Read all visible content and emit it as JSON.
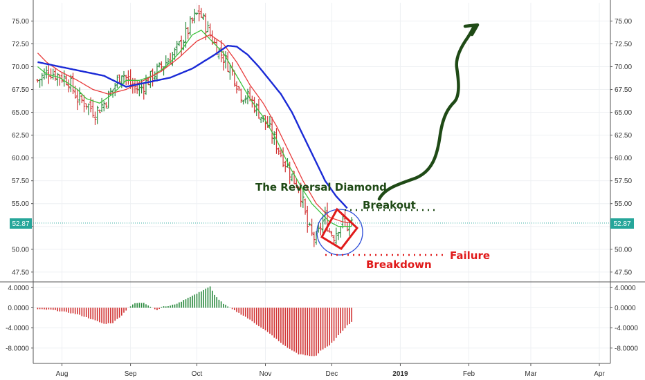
{
  "colors": {
    "grid": "#eef0f3",
    "axis": "#555555",
    "up": "#2a8a3e",
    "down": "#d03030",
    "ma_blue": "#1a2ad6",
    "ma_red": "#e83a3a",
    "ma_green": "#3cc23c",
    "price_line": "#26a69a",
    "annotation_green": "#1f4a16",
    "annotation_red": "#e01a1a",
    "circle": "#2b4bd8"
  },
  "current_price_label": "52.87",
  "chart_data": [
    {
      "type": "candlestick",
      "ylim": [
        46.5,
        77.0
      ],
      "y_ticks": [
        "47.50",
        "50.00",
        "52.50",
        "55.00",
        "57.50",
        "60.00",
        "62.50",
        "65.00",
        "67.50",
        "70.00",
        "72.50",
        "75.00"
      ],
      "x_ticks": [
        {
          "label": "Aug",
          "day": 11,
          "bold": false
        },
        {
          "label": "Sep",
          "day": 42,
          "bold": false
        },
        {
          "label": "Oct",
          "day": 72,
          "bold": false
        },
        {
          "label": "Nov",
          "day": 103,
          "bold": false
        },
        {
          "label": "Dec",
          "day": 133,
          "bold": false
        },
        {
          "label": "2019",
          "day": 164,
          "bold": true
        },
        {
          "label": "Feb",
          "day": 195,
          "bold": false
        },
        {
          "label": "Mar",
          "day": 223,
          "bold": false
        },
        {
          "label": "Apr",
          "day": 254,
          "bold": false
        }
      ],
      "x_range": [
        -2,
        259
      ],
      "current_price": 52.87,
      "close_anchors": [
        [
          0,
          68.5
        ],
        [
          5,
          69.5
        ],
        [
          10,
          69.0
        ],
        [
          14,
          68.5
        ],
        [
          18,
          66.5
        ],
        [
          22,
          66.0
        ],
        [
          26,
          65.0
        ],
        [
          30,
          66.0
        ],
        [
          34,
          67.5
        ],
        [
          38,
          69.5
        ],
        [
          42,
          68.0
        ],
        [
          46,
          67.5
        ],
        [
          50,
          68.5
        ],
        [
          54,
          69.5
        ],
        [
          58,
          70.5
        ],
        [
          62,
          71.5
        ],
        [
          66,
          73.0
        ],
        [
          70,
          75.0
        ],
        [
          73,
          76.0
        ],
        [
          76,
          74.5
        ],
        [
          80,
          72.5
        ],
        [
          84,
          71.0
        ],
        [
          88,
          69.5
        ],
        [
          92,
          67.0
        ],
        [
          96,
          66.5
        ],
        [
          100,
          65.0
        ],
        [
          104,
          63.5
        ],
        [
          108,
          61.5
        ],
        [
          112,
          59.5
        ],
        [
          116,
          57.5
        ],
        [
          118,
          57.0
        ],
        [
          120,
          55.0
        ],
        [
          122,
          52.5
        ],
        [
          124,
          51.5
        ],
        [
          126,
          51.0
        ],
        [
          128,
          52.5
        ],
        [
          130,
          53.5
        ],
        [
          132,
          52.0
        ],
        [
          134,
          51.5
        ],
        [
          136,
          52.5
        ],
        [
          138,
          53.0
        ],
        [
          140,
          52.5
        ],
        [
          142,
          52.87
        ]
      ],
      "ma_blue": [
        [
          0,
          70.5
        ],
        [
          10,
          70.0
        ],
        [
          20,
          69.5
        ],
        [
          30,
          69.0
        ],
        [
          40,
          67.8
        ],
        [
          50,
          68.3
        ],
        [
          60,
          68.8
        ],
        [
          70,
          69.8
        ],
        [
          80,
          71.3
        ],
        [
          86,
          72.3
        ],
        [
          90,
          72.2
        ],
        [
          95,
          71.3
        ],
        [
          100,
          70.0
        ],
        [
          105,
          68.5
        ],
        [
          110,
          67.0
        ],
        [
          115,
          65.0
        ],
        [
          120,
          62.5
        ],
        [
          125,
          60.0
        ],
        [
          130,
          57.5
        ],
        [
          135,
          55.8
        ],
        [
          140,
          54.5
        ]
      ],
      "ma_red": [
        [
          0,
          71.5
        ],
        [
          4,
          70.5
        ],
        [
          10,
          69.5
        ],
        [
          18,
          68.5
        ],
        [
          25,
          67.5
        ],
        [
          32,
          67.0
        ],
        [
          40,
          67.5
        ],
        [
          48,
          68.5
        ],
        [
          56,
          69.5
        ],
        [
          64,
          71.0
        ],
        [
          72,
          72.8
        ],
        [
          78,
          73.5
        ],
        [
          84,
          72.5
        ],
        [
          90,
          70.5
        ],
        [
          96,
          68.0
        ],
        [
          102,
          66.0
        ],
        [
          108,
          63.5
        ],
        [
          114,
          60.5
        ],
        [
          120,
          57.5
        ],
        [
          126,
          55.0
        ],
        [
          132,
          53.5
        ],
        [
          138,
          53.0
        ],
        [
          142,
          52.9
        ]
      ],
      "ma_green": [
        [
          0,
          70.0
        ],
        [
          4,
          69.2
        ],
        [
          10,
          68.8
        ],
        [
          18,
          67.5
        ],
        [
          22,
          66.5
        ],
        [
          28,
          66.0
        ],
        [
          34,
          67.0
        ],
        [
          40,
          68.5
        ],
        [
          46,
          68.5
        ],
        [
          52,
          69.0
        ],
        [
          58,
          70.0
        ],
        [
          64,
          71.5
        ],
        [
          70,
          73.5
        ],
        [
          74,
          74.0
        ],
        [
          78,
          73.0
        ],
        [
          84,
          71.5
        ],
        [
          90,
          69.0
        ],
        [
          96,
          66.5
        ],
        [
          102,
          64.5
        ],
        [
          108,
          62.0
        ],
        [
          114,
          59.0
        ],
        [
          120,
          56.5
        ],
        [
          124,
          55.0
        ],
        [
          128,
          54.0
        ],
        [
          132,
          53.0
        ],
        [
          136,
          52.5
        ],
        [
          140,
          52.5
        ],
        [
          142,
          52.5
        ]
      ]
    },
    {
      "type": "histogram",
      "ylim": [
        -10.5,
        5.0
      ],
      "y_ticks": [
        "4.0000",
        "0.0000",
        "-4.0000",
        "-8.0000"
      ],
      "hist_anchors": [
        [
          0,
          -0.3
        ],
        [
          6,
          -0.4
        ],
        [
          12,
          -0.8
        ],
        [
          18,
          -1.3
        ],
        [
          24,
          -2.2
        ],
        [
          30,
          -3.2
        ],
        [
          34,
          -3.0
        ],
        [
          38,
          -1.5
        ],
        [
          41,
          0.0
        ],
        [
          44,
          0.9
        ],
        [
          48,
          1.0
        ],
        [
          52,
          0.0
        ],
        [
          54,
          -0.5
        ],
        [
          56,
          0.2
        ],
        [
          60,
          0.4
        ],
        [
          64,
          1.0
        ],
        [
          68,
          2.0
        ],
        [
          72,
          2.8
        ],
        [
          76,
          3.8
        ],
        [
          78,
          4.2
        ],
        [
          80,
          2.5
        ],
        [
          84,
          0.8
        ],
        [
          88,
          -0.3
        ],
        [
          90,
          -0.8
        ],
        [
          94,
          -1.8
        ],
        [
          98,
          -3.0
        ],
        [
          102,
          -4.2
        ],
        [
          106,
          -5.5
        ],
        [
          110,
          -7.0
        ],
        [
          114,
          -8.2
        ],
        [
          118,
          -9.2
        ],
        [
          122,
          -9.5
        ],
        [
          124,
          -9.6
        ],
        [
          126,
          -9.5
        ],
        [
          128,
          -8.5
        ],
        [
          132,
          -7.5
        ],
        [
          136,
          -5.5
        ],
        [
          140,
          -3.5
        ],
        [
          142,
          -2.8
        ]
      ]
    }
  ],
  "annotations": {
    "title": "The Reversal Diamond",
    "breakout": "Breakout",
    "failure": "Failure",
    "breakdown": "Breakdown"
  }
}
